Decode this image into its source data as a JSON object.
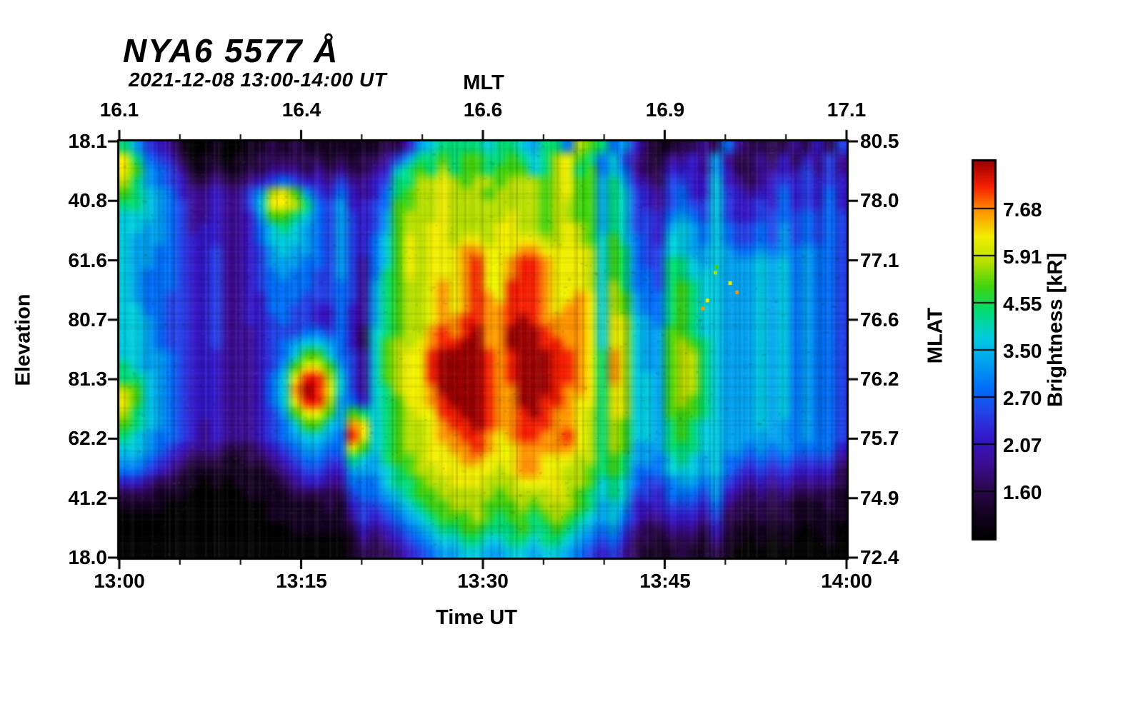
{
  "title": "NYA6 5577 Å",
  "subtitle": "2021-12-08 13:00-14:00 UT",
  "axes": {
    "top": {
      "label": "MLT",
      "ticks": [
        "16.1",
        "16.4",
        "16.6",
        "16.9",
        "17.1"
      ]
    },
    "bottom": {
      "label": "Time UT",
      "ticks": [
        "13:00",
        "13:15",
        "13:30",
        "13:45",
        "14:00"
      ]
    },
    "left": {
      "label": "Elevation",
      "ticks": [
        "18.1",
        "40.8",
        "61.6",
        "80.7",
        "81.3",
        "62.2",
        "41.2",
        "18.0"
      ]
    },
    "right": {
      "label": "MLAT",
      "ticks": [
        "80.5",
        "78.0",
        "77.1",
        "76.6",
        "76.2",
        "75.7",
        "74.9",
        "72.4"
      ]
    }
  },
  "colorbar": {
    "label": "Brightness [kR]",
    "ticks": [
      "7.68",
      "5.91",
      "4.55",
      "3.50",
      "2.70",
      "2.07",
      "1.60"
    ],
    "segments": 8
  },
  "chart_data": {
    "type": "heatmap",
    "title": "NYA6 5577 Å",
    "subtitle": "2021-12-08 13:00-14:00 UT",
    "x_axis": {
      "label": "Time UT",
      "ticks": [
        "13:00",
        "13:15",
        "13:30",
        "13:45",
        "14:00"
      ],
      "minor_per_interval": 2
    },
    "x_axis_top": {
      "label": "MLT",
      "ticks": [
        16.1,
        16.4,
        16.6,
        16.9,
        17.1
      ]
    },
    "y_axis_left": {
      "label": "Elevation",
      "ticks": [
        18.1,
        40.8,
        61.6,
        80.7,
        81.3,
        62.2,
        41.2,
        18.0
      ]
    },
    "y_axis_right": {
      "label": "MLAT",
      "ticks": [
        80.5,
        78.0,
        77.1,
        76.6,
        76.2,
        75.7,
        74.9,
        72.4
      ]
    },
    "colorbar_tick_values": [
      7.68,
      5.91,
      4.55,
      3.5,
      2.7,
      2.07,
      1.6
    ],
    "value_encoding": "hex digit 0-15 = normalized brightness from colorbar bottom (black) to top (dark red)",
    "grid_cols": 64,
    "grid_rows": 36,
    "values_hex_rows": [
      "9754310010011212111111122478999989987996ba96742112232632222324253",
      "c96542011011222222121223579 9a9aa99a989bca9685321334373223242 4353",
      "ca7653112112233323232234 89a9b9aa9aaa89bc9a686322444374223343 5353",
      "b9765422322345654435334599bbcbabbabbbabcaa797432554484323454 5454",
      "a987643343357bca754643469abbcbbbabbbbabcaa798543564485434464 5464",
      "9987653343358ccb96574456aabbcbbbbbbbbabbaa798543565585445464 5464",
      "8887653343347aa986575457abbbcbbbbbcbbabbaa798554676585445565 6565",
      "887765344334689876575457abbccbbbbccbbabcba798554787686556575 6565",
      "877765444334688876575468acbccbccbccccbbcba8a8654887686556575 6565",
      "877665445334578776575468acbcccddcccddccccb8a9655887787667676 7665",
      "877665445334577766575368acbcccdeccdeedcccb8a9655998787778786 7665",
      "876665445334567665575369acbcccdeccdeedcccb8a9665998887778786 7665",
      "876665445334566665565379abbcdcdecceeedcccb8b96659a9887778786 7665",
      "876655445334466655565379abbcdcdedceeedccdc8ba7669a9887778786 7665",
      "886655445334466554464379abbcdcdeddeeedcddc8ba7669a9887778786 7665",
      "887655445334456554464379abbcddeeddefeddddc8cb8769a9887778786 7665",
      "887655445333455566564289abbdedefddfffedddc8cb877aa9887778786 7665",
      "88765544533345678876428abbcdeeffddfffeeddc8cb877aba987778786 7665",
      "8877654443334568aa86538abcceffffedefffeedc9db877abb987778786 7665",
      "987765444333457acca7538abcceffffedefffeedc9db877abb987778786 7665",
      "998765444333468ceeb8538abcceffffedefffeedc9db887abb987778786 7665",
      "ba8765444333468dfec85389bccdffffeddfffeddc9cb887abb987778786 7665",
      "ca8765444333468ceeb76489accdefffeddffeedcc9cb887aba987778786 7665",
      "b98765444333457acca7a989abcceeffeddefeddcb9cb887aaa987778786 7665",
      "a987654343334568aa87dc89abbcdeefeddeeeddcb9ba8879a9887778776 7665",
      "98766543433345678876ec89abbcddeedcdeeddecb9ba8879a9887777776 7665",
      "88765433322234567766ca89abbccddedccdddddcb9ba777999887767676 6664",
      "776543222112234566559879aabcccddcccddcccbb9a9776898786656565 5553",
      "6654321111111234554477789abbcccccbcddccbba9a9666888786545454 4442",
      "44322110101111234433666899abbcccbbbccccbba898655677675434343 3332",
      "22211100000111122222566789aabbbbbabbbbcba9898554666574323232 2221",
      "111100000000011111214556789aabbbaaababbba9787444555463222221 1121",
      "0000000000000111111135456789aaaba9aa9aba98786433444352212121 1111",
      "00000000000000011111243456789 9aa999a99a987675322333242111111 0110",
      "000000000000000000001323456788998899899876564221222131101010 0010",
      "000000000000000000001222345677887788788765453211121121000000 0000"
    ],
    "colormap_stops": [
      [
        0.0,
        "#000000"
      ],
      [
        0.067,
        "#150322"
      ],
      [
        0.133,
        "#2c0850"
      ],
      [
        0.2,
        "#3c0d96"
      ],
      [
        0.267,
        "#3318c8"
      ],
      [
        0.333,
        "#2442e8"
      ],
      [
        0.4,
        "#0070f8"
      ],
      [
        0.467,
        "#00a2f0"
      ],
      [
        0.533,
        "#00cde0"
      ],
      [
        0.6,
        "#00dc78"
      ],
      [
        0.667,
        "#3fd410"
      ],
      [
        0.733,
        "#b8e000"
      ],
      [
        0.8,
        "#f2ee00"
      ],
      [
        0.867,
        "#ff9400"
      ],
      [
        0.933,
        "#f52000"
      ],
      [
        1.0,
        "#9c0000"
      ]
    ],
    "specks": [
      {
        "col": 52.4,
        "row": 10.7,
        "v": 10
      },
      {
        "col": 52.3,
        "row": 11.2,
        "v": 11
      },
      {
        "col": 53.6,
        "row": 12.1,
        "v": 12
      },
      {
        "col": 54.2,
        "row": 12.9,
        "v": 13
      },
      {
        "col": 51.6,
        "row": 13.6,
        "v": 12
      },
      {
        "col": 51.2,
        "row": 14.3,
        "v": 13
      }
    ]
  }
}
